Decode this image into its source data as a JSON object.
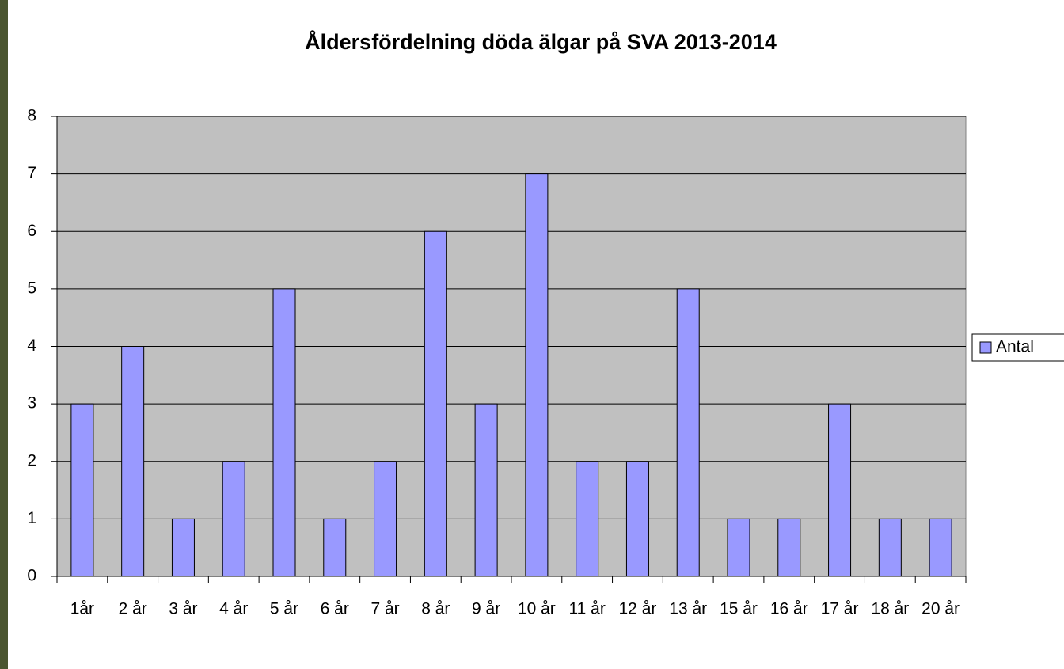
{
  "chart_data": {
    "type": "bar",
    "title": "Åldersfördelning döda älgar på SVA 2013-2014",
    "categories": [
      "1år",
      "2 år",
      "3 år",
      "4 år",
      "5 år",
      "6 år",
      "7 år",
      "8 år",
      "9 år",
      "10 år",
      "11 år",
      "12 år",
      "13 år",
      "15 år",
      "16 år",
      "17 år",
      "18 år",
      "20 år"
    ],
    "series": [
      {
        "name": "Antal",
        "color": "#9999ff",
        "values": [
          3,
          4,
          1,
          2,
          5,
          1,
          2,
          6,
          3,
          7,
          2,
          2,
          5,
          1,
          1,
          3,
          1,
          1
        ]
      }
    ],
    "ylim": [
      0,
      8
    ],
    "yticks": [
      0,
      1,
      2,
      3,
      4,
      5,
      6,
      7,
      8
    ],
    "grid": true,
    "legend": "right"
  }
}
